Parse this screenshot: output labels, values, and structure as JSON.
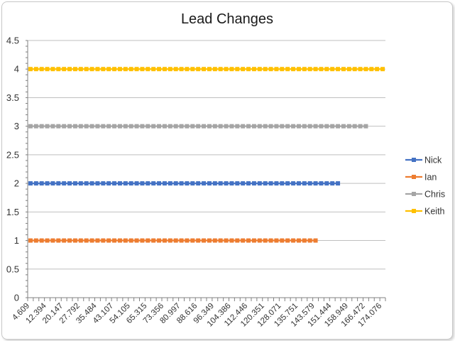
{
  "chart_data": {
    "type": "line",
    "title": "Lead Changes",
    "xlabel": "",
    "ylabel": "",
    "ylim": [
      0,
      4.5
    ],
    "yticks": [
      "0",
      "0.5",
      "1",
      "1.5",
      "2",
      "2.5",
      "3",
      "3.5",
      "4",
      "4.5"
    ],
    "gridlines": true,
    "legend_position": "right",
    "x_categories": [
      "4.609",
      "12.394",
      "20.147",
      "27.792",
      "35.484",
      "43.107",
      "54.105",
      "65.315",
      "73.356",
      "80.997",
      "88.616",
      "96.349",
      "104.386",
      "112.446",
      "120.351",
      "128.071",
      "135.751",
      "143.579",
      "151.444",
      "158.949",
      "166.472",
      "174.076"
    ],
    "series": [
      {
        "name": "Nick",
        "color": "#4472c4",
        "y": 2,
        "points": 56
      },
      {
        "name": "Ian",
        "color": "#ed7d31",
        "y": 1,
        "points": 52
      },
      {
        "name": "Chris",
        "color": "#a5a5a5",
        "y": 3,
        "points": 61
      },
      {
        "name": "Keith",
        "color": "#ffc000",
        "y": 4,
        "points": 64
      }
    ]
  }
}
